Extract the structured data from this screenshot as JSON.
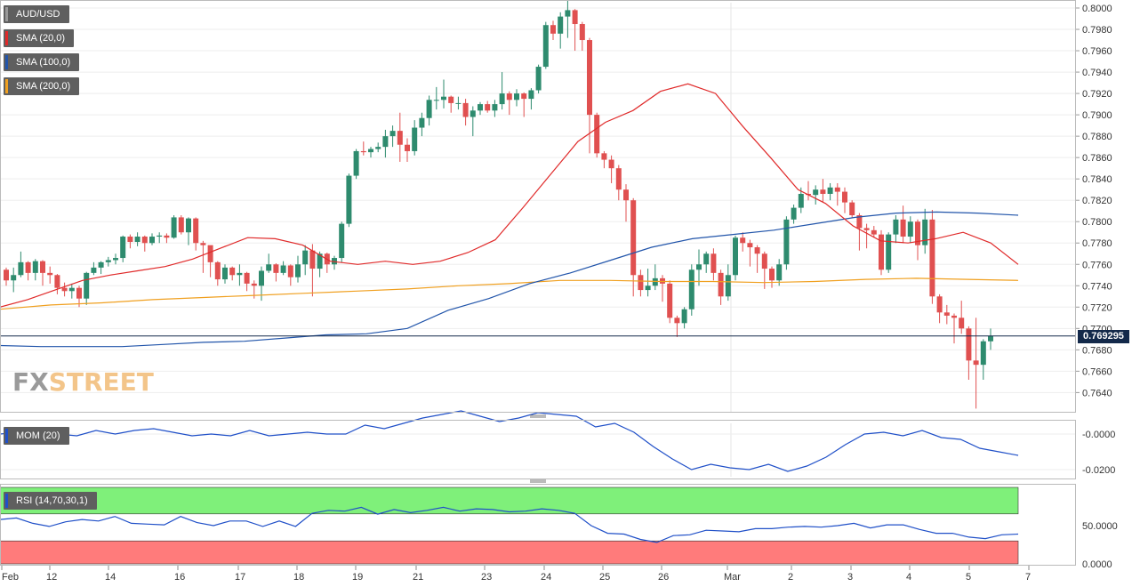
{
  "instrument": "AUD/USD",
  "current_price_label": "0.769295",
  "watermark": {
    "part1": "FX",
    "part2": "STREET"
  },
  "legend": [
    {
      "label": "SMA (20,0)",
      "color": "#e02a2a"
    },
    {
      "label": "SMA (100,0)",
      "color": "#2255aa"
    },
    {
      "label": "SMA (200,0)",
      "color": "#f0a020"
    }
  ],
  "indicators": {
    "mom_label": "MOM (20)",
    "rsi_label": "RSI (14,70,30,1)"
  },
  "colors": {
    "bull": "#2e8b6e",
    "bear": "#e05050",
    "mom": "#2050c8",
    "rsi": "#2050c8",
    "overbought": "#7ff07a",
    "oversold": "#ff7b7b"
  },
  "chart_data": {
    "type": "candlestick",
    "x_tick_labels": [
      "Feb",
      "12",
      "14",
      "16",
      "17",
      "18",
      "19",
      "21",
      "23",
      "24",
      "25",
      "26",
      "Mar",
      "2",
      "3",
      "4",
      "5",
      "7"
    ],
    "price_axis": {
      "ylim": [
        0.7622,
        0.8005
      ],
      "ticks": [
        "0.8000",
        "0.7980",
        "0.7960",
        "0.7940",
        "0.7920",
        "0.7900",
        "0.7880",
        "0.7860",
        "0.7840",
        "0.7820",
        "0.7800",
        "0.7780",
        "0.7760",
        "0.7740",
        "0.7720",
        "0.7700",
        "0.7680",
        "0.7660",
        "0.7640"
      ]
    },
    "mom_axis": {
      "ylim": [
        -0.024,
        0.006
      ],
      "ticks": [
        "-0.0000",
        "-0.0200"
      ]
    },
    "rsi_axis": {
      "ylim": [
        0,
        100
      ],
      "ticks": [
        "50.0000",
        "0.0000"
      ],
      "overbought": 70,
      "oversold": 30
    },
    "candles": [
      [
        0.7755,
        0.7745,
        0.7757,
        0.774
      ],
      [
        0.7745,
        0.775,
        0.7757,
        0.7734
      ],
      [
        0.775,
        0.7762,
        0.7772,
        0.7748
      ],
      [
        0.7762,
        0.7752,
        0.7763,
        0.7745
      ],
      [
        0.7752,
        0.7763,
        0.7765,
        0.7745
      ],
      [
        0.7763,
        0.7752,
        0.7764,
        0.774
      ],
      [
        0.7752,
        0.775,
        0.7758,
        0.7742
      ],
      [
        0.775,
        0.7738,
        0.7751,
        0.7732
      ],
      [
        0.7738,
        0.7735,
        0.7743,
        0.773
      ],
      [
        0.7735,
        0.7738,
        0.7742,
        0.7728
      ],
      [
        0.7738,
        0.7728,
        0.774,
        0.772
      ],
      [
        0.7728,
        0.7752,
        0.7753,
        0.7722
      ],
      [
        0.7752,
        0.7757,
        0.7762,
        0.775
      ],
      [
        0.7757,
        0.7762,
        0.7763,
        0.7751
      ],
      [
        0.7762,
        0.7764,
        0.7767,
        0.7758
      ],
      [
        0.7764,
        0.7766,
        0.777,
        0.776
      ],
      [
        0.7766,
        0.7786,
        0.7787,
        0.7762
      ],
      [
        0.7786,
        0.7781,
        0.7788,
        0.7775
      ],
      [
        0.7781,
        0.7786,
        0.779,
        0.7777
      ],
      [
        0.7786,
        0.778,
        0.7787,
        0.7772
      ],
      [
        0.778,
        0.7786,
        0.7789,
        0.7778
      ],
      [
        0.7786,
        0.7787,
        0.779,
        0.778
      ],
      [
        0.7787,
        0.7785,
        0.7789,
        0.778
      ],
      [
        0.7785,
        0.7804,
        0.7806,
        0.7784
      ],
      [
        0.7804,
        0.779,
        0.7806,
        0.7788
      ],
      [
        0.779,
        0.7803,
        0.7804,
        0.7778
      ],
      [
        0.7803,
        0.778,
        0.7804,
        0.7773
      ],
      [
        0.778,
        0.7778,
        0.7782,
        0.7752
      ],
      [
        0.7778,
        0.7762,
        0.777,
        0.7748
      ],
      [
        0.7762,
        0.7746,
        0.7763,
        0.774
      ],
      [
        0.7746,
        0.7757,
        0.776,
        0.7742
      ],
      [
        0.7757,
        0.775,
        0.7758,
        0.7745
      ],
      [
        0.775,
        0.7752,
        0.776,
        0.774
      ],
      [
        0.7752,
        0.7742,
        0.7753,
        0.7735
      ],
      [
        0.7742,
        0.774,
        0.7745,
        0.7728
      ],
      [
        0.774,
        0.7754,
        0.7758,
        0.7726
      ],
      [
        0.7754,
        0.776,
        0.777,
        0.7752
      ],
      [
        0.776,
        0.7752,
        0.7761,
        0.7744
      ],
      [
        0.7752,
        0.7759,
        0.7763,
        0.775
      ],
      [
        0.7759,
        0.7748,
        0.776,
        0.774
      ],
      [
        0.7748,
        0.776,
        0.7768,
        0.7743
      ],
      [
        0.776,
        0.7773,
        0.7778,
        0.775
      ],
      [
        0.7773,
        0.7756,
        0.7779,
        0.773
      ],
      [
        0.7756,
        0.777,
        0.7772,
        0.7748
      ],
      [
        0.777,
        0.776,
        0.7771,
        0.7752
      ],
      [
        0.776,
        0.7766,
        0.7768,
        0.7755
      ],
      [
        0.7766,
        0.7798,
        0.78,
        0.7762
      ],
      [
        0.7798,
        0.7843,
        0.7845,
        0.7795
      ],
      [
        0.7843,
        0.7866,
        0.7868,
        0.784
      ],
      [
        0.7866,
        0.7865,
        0.7875,
        0.7862
      ],
      [
        0.7865,
        0.7868,
        0.787,
        0.786
      ],
      [
        0.7868,
        0.787,
        0.7874,
        0.7865
      ],
      [
        0.787,
        0.788,
        0.7886,
        0.786
      ],
      [
        0.788,
        0.7885,
        0.789,
        0.787
      ],
      [
        0.7885,
        0.7872,
        0.7902,
        0.7856
      ],
      [
        0.7872,
        0.7866,
        0.7878,
        0.7856
      ],
      [
        0.7866,
        0.7888,
        0.7895,
        0.7862
      ],
      [
        0.7888,
        0.7897,
        0.7902,
        0.788
      ],
      [
        0.7897,
        0.7914,
        0.7918,
        0.789
      ],
      [
        0.7914,
        0.7914,
        0.7926,
        0.7905
      ],
      [
        0.7914,
        0.7917,
        0.7933,
        0.7906
      ],
      [
        0.7917,
        0.7911,
        0.7918,
        0.7902
      ],
      [
        0.7911,
        0.7911,
        0.7917,
        0.7905
      ],
      [
        0.7911,
        0.7898,
        0.7915,
        0.789
      ],
      [
        0.7898,
        0.7904,
        0.7908,
        0.788
      ],
      [
        0.7904,
        0.791,
        0.7912,
        0.79
      ],
      [
        0.791,
        0.7904,
        0.7913,
        0.7902
      ],
      [
        0.7904,
        0.791,
        0.7914,
        0.7898
      ],
      [
        0.791,
        0.792,
        0.794,
        0.7905
      ],
      [
        0.792,
        0.7914,
        0.7922,
        0.79
      ],
      [
        0.7914,
        0.792,
        0.7924,
        0.7908
      ],
      [
        0.792,
        0.7915,
        0.7921,
        0.7898
      ],
      [
        0.7915,
        0.7923,
        0.7925,
        0.7905
      ],
      [
        0.7923,
        0.7945,
        0.7947,
        0.792
      ],
      [
        0.7945,
        0.7984,
        0.7987,
        0.7943
      ],
      [
        0.7984,
        0.7976,
        0.7988,
        0.797
      ],
      [
        0.7976,
        0.7992,
        0.7996,
        0.7962
      ],
      [
        0.7992,
        0.7998,
        0.8007,
        0.7972
      ],
      [
        0.7998,
        0.7985,
        0.7999,
        0.796
      ],
      [
        0.7985,
        0.797,
        0.7987,
        0.796
      ],
      [
        0.797,
        0.79,
        0.7972,
        0.7864
      ],
      [
        0.79,
        0.7864,
        0.7902,
        0.786
      ],
      [
        0.7864,
        0.7858,
        0.7866,
        0.785
      ],
      [
        0.7858,
        0.785,
        0.7862,
        0.7836
      ],
      [
        0.785,
        0.783,
        0.7853,
        0.782
      ],
      [
        0.783,
        0.782,
        0.7835,
        0.78
      ],
      [
        0.782,
        0.775,
        0.7822,
        0.773
      ],
      [
        0.775,
        0.7736,
        0.7755,
        0.773
      ],
      [
        0.7736,
        0.774,
        0.7756,
        0.773
      ],
      [
        0.774,
        0.7747,
        0.776,
        0.7736
      ],
      [
        0.7747,
        0.7742,
        0.775,
        0.7725
      ],
      [
        0.7742,
        0.771,
        0.7745,
        0.7705
      ],
      [
        0.771,
        0.7705,
        0.7712,
        0.7692
      ],
      [
        0.7705,
        0.7718,
        0.772,
        0.77
      ],
      [
        0.7718,
        0.7755,
        0.776,
        0.7712
      ],
      [
        0.7755,
        0.776,
        0.7774,
        0.774
      ],
      [
        0.776,
        0.777,
        0.7772,
        0.7752
      ],
      [
        0.777,
        0.7752,
        0.7775,
        0.7745
      ],
      [
        0.7752,
        0.773,
        0.7755,
        0.7722
      ],
      [
        0.773,
        0.775,
        0.776,
        0.7726
      ],
      [
        0.775,
        0.7785,
        0.7787,
        0.7745
      ],
      [
        0.7785,
        0.778,
        0.779,
        0.7772
      ],
      [
        0.778,
        0.7776,
        0.7783,
        0.7758
      ],
      [
        0.7776,
        0.777,
        0.7778,
        0.7752
      ],
      [
        0.777,
        0.7756,
        0.7772,
        0.7737
      ],
      [
        0.7756,
        0.7745,
        0.7758,
        0.7738
      ],
      [
        0.7745,
        0.776,
        0.7765,
        0.774
      ],
      [
        0.776,
        0.7802,
        0.7805,
        0.7755
      ],
      [
        0.7802,
        0.7813,
        0.7816,
        0.7798
      ],
      [
        0.7813,
        0.7826,
        0.7832,
        0.7808
      ],
      [
        0.7826,
        0.7825,
        0.7838,
        0.782
      ],
      [
        0.7825,
        0.783,
        0.7834,
        0.7816
      ],
      [
        0.783,
        0.7826,
        0.784,
        0.7818
      ],
      [
        0.7826,
        0.7832,
        0.7836,
        0.782
      ],
      [
        0.7832,
        0.7828,
        0.7836,
        0.7815
      ],
      [
        0.7828,
        0.7818,
        0.7832,
        0.7808
      ],
      [
        0.7818,
        0.7806,
        0.782,
        0.7804
      ],
      [
        0.7806,
        0.7794,
        0.7808,
        0.7773
      ],
      [
        0.7794,
        0.7792,
        0.7798,
        0.7775
      ],
      [
        0.7792,
        0.7788,
        0.7796,
        0.7785
      ],
      [
        0.7788,
        0.7755,
        0.7792,
        0.775
      ],
      [
        0.7755,
        0.7788,
        0.779,
        0.7752
      ],
      [
        0.7788,
        0.7802,
        0.7806,
        0.778
      ],
      [
        0.7802,
        0.7786,
        0.7815,
        0.778
      ],
      [
        0.7786,
        0.78,
        0.7805,
        0.778
      ],
      [
        0.78,
        0.7778,
        0.7802,
        0.7764
      ],
      [
        0.7778,
        0.7802,
        0.7812,
        0.777
      ],
      [
        0.7802,
        0.773,
        0.7811,
        0.7723
      ],
      [
        0.773,
        0.7715,
        0.7732,
        0.7705
      ],
      [
        0.7715,
        0.7712,
        0.7722,
        0.7704
      ],
      [
        0.7712,
        0.771,
        0.7714,
        0.7686
      ],
      [
        0.771,
        0.77,
        0.7726,
        0.7695
      ],
      [
        0.77,
        0.767,
        0.7702,
        0.7652
      ],
      [
        0.767,
        0.7666,
        0.771,
        0.7625
      ],
      [
        0.7666,
        0.7688,
        0.769,
        0.7652
      ],
      [
        0.7688,
        0.7693,
        0.77,
        0.768
      ]
    ],
    "series": [
      {
        "name": "SMA (20,0)",
        "values": [
          0.772,
          0.7727,
          0.7736,
          0.7745,
          0.775,
          0.7754,
          0.7758,
          0.7765,
          0.7775,
          0.7785,
          0.7784,
          0.7778,
          0.7763,
          0.776,
          0.7763,
          0.776,
          0.7763,
          0.7771,
          0.7783,
          0.7813,
          0.7844,
          0.7875,
          0.7893,
          0.7904,
          0.7922,
          0.7929,
          0.792,
          0.7889,
          0.786,
          0.783,
          0.7817,
          0.7796,
          0.7782,
          0.778,
          0.7784,
          0.779,
          0.778,
          0.776
        ]
      },
      {
        "name": "SMA (100,0)",
        "values": [
          0.7684,
          0.7683,
          0.7683,
          0.7683,
          0.7685,
          0.7687,
          0.7688,
          0.7691,
          0.7694,
          0.7695,
          0.77,
          0.7717,
          0.7728,
          0.7742,
          0.7752,
          0.7764,
          0.7776,
          0.7784,
          0.7788,
          0.7792,
          0.7798,
          0.7804,
          0.7808,
          0.7809,
          0.7808,
          0.7806
        ]
      },
      {
        "name": "SMA (200,0)",
        "values": [
          0.7718,
          0.7722,
          0.7724,
          0.7727,
          0.7729,
          0.7731,
          0.7733,
          0.7735,
          0.7737,
          0.774,
          0.7742,
          0.7745,
          0.7745,
          0.7744,
          0.7744,
          0.7743,
          0.7744,
          0.7746,
          0.7747,
          0.7746,
          0.7745
        ]
      },
      {
        "name": "MOM (20)",
        "values": [
          0.0,
          0.001,
          -0.002,
          0.0,
          -0.001,
          0.002,
          0.0,
          0.002,
          0.003,
          0.001,
          -0.001,
          0.0,
          -0.001,
          0.002,
          -0.001,
          0.0,
          0.001,
          0.0,
          0.0,
          0.005,
          0.003,
          0.006,
          0.009,
          0.011,
          0.013,
          0.01,
          0.007,
          0.009,
          0.012,
          0.011,
          0.01,
          0.004,
          0.006,
          0.001,
          -0.007,
          -0.014,
          -0.02,
          -0.017,
          -0.019,
          -0.02,
          -0.017,
          -0.021,
          -0.018,
          -0.013,
          -0.006,
          0.0,
          0.001,
          -0.001,
          0.002,
          -0.002,
          -0.003,
          -0.008,
          -0.01,
          -0.012
        ]
      },
      {
        "name": "RSI (14,70,30,1)",
        "values": [
          58,
          60,
          53,
          49,
          55,
          58,
          56,
          62,
          53,
          52,
          51,
          62,
          54,
          50,
          56,
          56,
          49,
          56,
          49,
          66,
          70,
          69,
          74,
          65,
          71,
          67,
          70,
          74,
          69,
          72,
          71,
          68,
          69,
          72,
          70,
          66,
          50,
          40,
          39,
          32,
          28,
          37,
          38,
          44,
          43,
          42,
          46,
          46,
          48,
          49,
          48,
          50,
          53,
          47,
          51,
          51,
          45,
          40,
          40,
          35,
          33,
          38,
          39
        ]
      }
    ]
  }
}
